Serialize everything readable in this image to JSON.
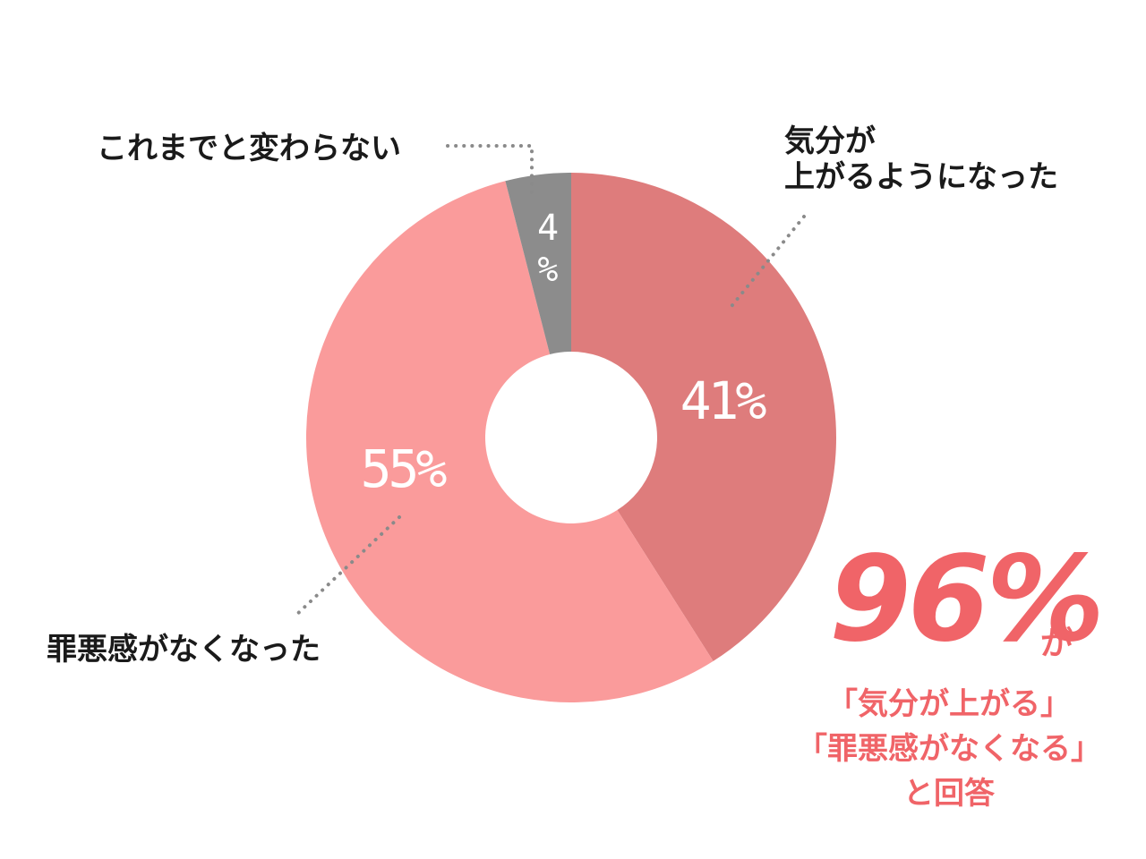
{
  "chart_data": {
    "type": "pie",
    "title": "",
    "categories": [
      "気分が上がるようになった",
      "罪悪感がなくなった",
      "これまでと変わらない"
    ],
    "values": [
      41,
      55,
      4
    ],
    "value_labels": [
      "41%",
      "55%",
      "4%"
    ],
    "colors": [
      "#de7c7c",
      "#fa9b9b",
      "#8c8c8c"
    ],
    "donut": true,
    "legend": "none"
  },
  "labels": {
    "mood_line1": "気分が",
    "mood_line2": "上がるようになった",
    "guilt": "罪悪感がなくなった",
    "unchanged": "これまでと変わらない"
  },
  "summary": {
    "big_value": "96%",
    "particle": "が",
    "line1": "「気分が上がる」",
    "line2": "「罪悪感がなくなる」",
    "line3": "と回答",
    "color": "#f06468"
  }
}
